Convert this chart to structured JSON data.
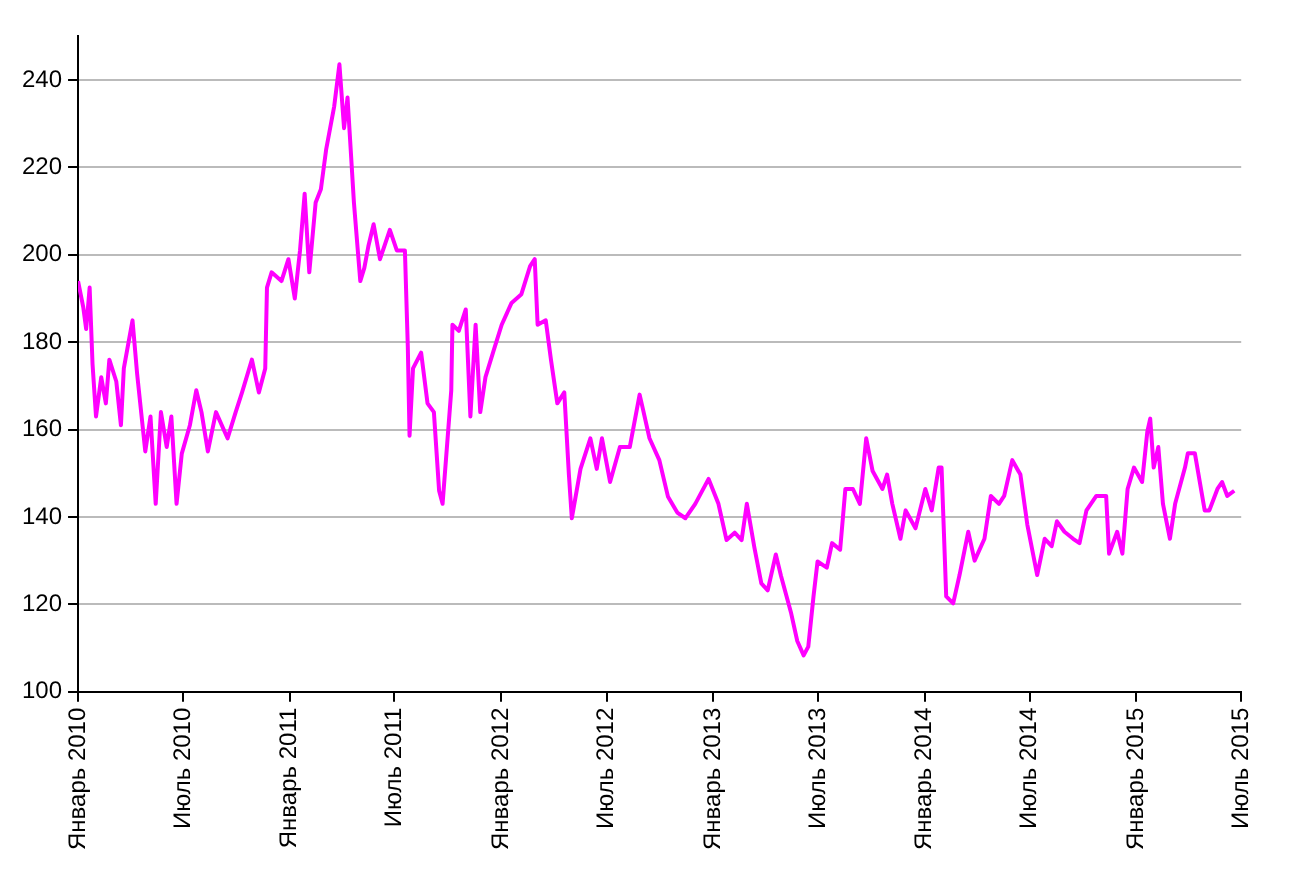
{
  "chart_data": {
    "type": "line",
    "grid": "y",
    "line_style": "solid",
    "marker": "none",
    "xlim": [
      "2010-01-01",
      "2015-07-01"
    ],
    "xticks": [
      {
        "value": "2010-01-01",
        "label": "Январь 2010"
      },
      {
        "value": "2010-07-01",
        "label": "Июль 2010"
      },
      {
        "value": "2011-01-01",
        "label": "Январь 2011"
      },
      {
        "value": "2011-07-01",
        "label": "Июль 2011"
      },
      {
        "value": "2012-01-01",
        "label": "Январь 2012"
      },
      {
        "value": "2012-07-01",
        "label": "Июль 2012"
      },
      {
        "value": "2013-01-01",
        "label": "Январь 2013"
      },
      {
        "value": "2013-07-01",
        "label": "Июль 2013"
      },
      {
        "value": "2014-01-01",
        "label": "Январь 2014"
      },
      {
        "value": "2014-07-01",
        "label": "Июль 2014"
      },
      {
        "value": "2015-01-01",
        "label": "Январь 2015"
      },
      {
        "value": "2015-07-01",
        "label": "Июль 2015"
      }
    ],
    "ylim": [
      100,
      250
    ],
    "yticks": [
      100,
      120,
      140,
      160,
      180,
      200,
      220,
      240
    ],
    "series": [
      {
        "color": "#ff00ff",
        "x": [
          "2010-01-01",
          "2010-01-10",
          "2010-01-15",
          "2010-01-21",
          "2010-01-26",
          "2010-02-01",
          "2010-02-10",
          "2010-02-18",
          "2010-02-24",
          "2010-03-08",
          "2010-03-16",
          "2010-03-21",
          "2010-04-05",
          "2010-04-13",
          "2010-04-27",
          "2010-05-06",
          "2010-05-15",
          "2010-05-24",
          "2010-06-03",
          "2010-06-11",
          "2010-06-20",
          "2010-06-29",
          "2010-07-13",
          "2010-07-24",
          "2010-08-02",
          "2010-08-13",
          "2010-08-27",
          "2010-09-16",
          "2010-09-30",
          "2010-10-11",
          "2010-10-28",
          "2010-11-09",
          "2010-11-20",
          "2010-11-23",
          "2010-12-01",
          "2010-12-18",
          "2010-12-30",
          "2011-01-10",
          "2011-01-19",
          "2011-01-27",
          "2011-02-04",
          "2011-02-15",
          "2011-02-24",
          "2011-03-05",
          "2011-03-19",
          "2011-03-28",
          "2011-04-05",
          "2011-04-11",
          "2011-04-22",
          "2011-05-03",
          "2011-05-10",
          "2011-05-17",
          "2011-05-26",
          "2011-06-06",
          "2011-06-23",
          "2011-07-05",
          "2011-07-19",
          "2011-07-24",
          "2011-07-27",
          "2011-08-02",
          "2011-08-16",
          "2011-08-27",
          "2011-09-07",
          "2011-09-16",
          "2011-09-22",
          "2011-10-07",
          "2011-10-09",
          "2011-10-20",
          "2011-11-01",
          "2011-11-09",
          "2011-11-18",
          "2011-11-26",
          "2011-12-05",
          "2011-12-18",
          "2012-01-02",
          "2012-01-19",
          "2012-02-05",
          "2012-02-20",
          "2012-02-28",
          "2012-03-04",
          "2012-03-18",
          "2012-03-27",
          "2012-04-07",
          "2012-04-19",
          "2012-04-27",
          "2012-05-02",
          "2012-05-17",
          "2012-06-03",
          "2012-06-14",
          "2012-06-23",
          "2012-07-07",
          "2012-07-24",
          "2012-08-10",
          "2012-08-27",
          "2012-09-02",
          "2012-09-13",
          "2012-09-30",
          "2012-10-15",
          "2012-10-31",
          "2012-11-14",
          "2012-12-01",
          "2012-12-24",
          "2013-01-10",
          "2013-01-24",
          "2013-02-07",
          "2013-02-19",
          "2013-02-28",
          "2013-03-13",
          "2013-03-25",
          "2013-04-05",
          "2013-04-19",
          "2013-04-28",
          "2013-05-15",
          "2013-05-26",
          "2013-06-06",
          "2013-06-14",
          "2013-06-23",
          "2013-06-30",
          "2013-07-16",
          "2013-07-25",
          "2013-08-08",
          "2013-08-17",
          "2013-08-30",
          "2013-09-11",
          "2013-09-22",
          "2013-10-03",
          "2013-10-20",
          "2013-10-28",
          "2013-11-06",
          "2013-11-20",
          "2013-11-29",
          "2013-12-16",
          "2014-01-02",
          "2014-01-13",
          "2014-01-25",
          "2014-01-30",
          "2014-02-07",
          "2014-02-19",
          "2014-03-02",
          "2014-03-17",
          "2014-03-28",
          "2014-04-14",
          "2014-04-25",
          "2014-05-09",
          "2014-05-18",
          "2014-06-01",
          "2014-06-15",
          "2014-06-27",
          "2014-07-14",
          "2014-07-27",
          "2014-08-08",
          "2014-08-17",
          "2014-08-30",
          "2014-09-14",
          "2014-09-25",
          "2014-10-07",
          "2014-10-24",
          "2014-11-10",
          "2014-11-15",
          "2014-11-29",
          "2014-12-08",
          "2014-12-17",
          "2014-12-28",
          "2015-01-11",
          "2015-01-20",
          "2015-01-25",
          "2015-01-31",
          "2015-02-08",
          "2015-02-16",
          "2015-02-28",
          "2015-03-09",
          "2015-03-26",
          "2015-03-31",
          "2015-04-12",
          "2015-04-29",
          "2015-05-07",
          "2015-05-21",
          "2015-05-29",
          "2015-06-07",
          "2015-06-19"
        ],
        "values": [
          194,
          188,
          183,
          192.5,
          175,
          163,
          172,
          166,
          176,
          171,
          161,
          174,
          185,
          172.7,
          155,
          163,
          143,
          164,
          156,
          163,
          143,
          154.5,
          161,
          169,
          164,
          155,
          164,
          158,
          164,
          168.5,
          176,
          168.5,
          174,
          192.5,
          196,
          194,
          199,
          190,
          201,
          214,
          196,
          212,
          215,
          224,
          234,
          243.6,
          229,
          236,
          212,
          194,
          197,
          202,
          207,
          199,
          205.7,
          201,
          201,
          179,
          158.6,
          174,
          177.6,
          166,
          164,
          146,
          143,
          169,
          184,
          182.6,
          187.5,
          163,
          184,
          164,
          172,
          177.6,
          184,
          189,
          191,
          197.4,
          199,
          184,
          185,
          176,
          166,
          168.5,
          149.6,
          139.7,
          151,
          158,
          151,
          158,
          148,
          156,
          156,
          168,
          164.5,
          158,
          153,
          144.6,
          141,
          139.7,
          143,
          148.7,
          143,
          134.7,
          136.4,
          134.7,
          143,
          133,
          124.8,
          123.2,
          131.4,
          126.5,
          118.2,
          111.6,
          108.3,
          110.3,
          121.8,
          129.8,
          128.4,
          134,
          132.5,
          146.4,
          146.4,
          143,
          158,
          150.5,
          146.4,
          149.7,
          143,
          135,
          141.5,
          137.4,
          146.4,
          141.5,
          151.3,
          151.3,
          121.8,
          120.2,
          126.7,
          136.6,
          130,
          135,
          144.8,
          143,
          144.8,
          153,
          149.7,
          138.2,
          126.7,
          135,
          133.3,
          139,
          136.6,
          135,
          134,
          141.5,
          144.8,
          144.8,
          131.6,
          136.6,
          131.6,
          146.4,
          151.3,
          148,
          159.5,
          162.5,
          151.3,
          156,
          143,
          135,
          143,
          151.3,
          154.6,
          154.6,
          141.5,
          141.5,
          146.4,
          148,
          144.8,
          146
        ]
      }
    ]
  }
}
